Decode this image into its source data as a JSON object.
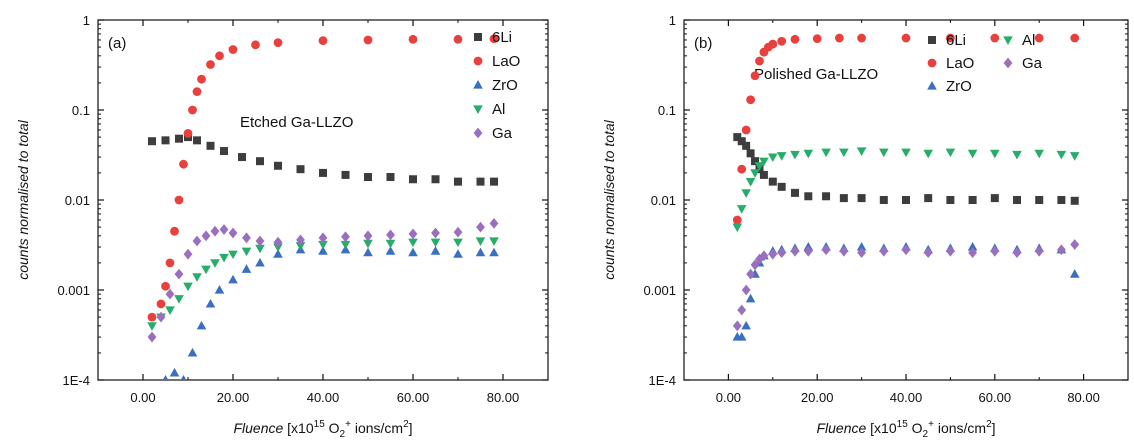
{
  "figure": {
    "colors": {
      "6Li": "#3d3d3d",
      "LaO": "#e8413d",
      "ZrO": "#3a6fc2",
      "Al": "#27ad6a",
      "Ga": "#9a6fc0"
    }
  },
  "chart_data": [
    {
      "type": "scatter",
      "panel_label": "(a)",
      "annotation": "Etched Ga-LLZO",
      "xlabel_italic": "Fluence",
      "xlabel_rest": " [x10",
      "xlabel_sup1": "15",
      "xlabel_mid": " O",
      "xlabel_sub": "2",
      "xlabel_sup2": "+",
      "xlabel_end": " ions/cm",
      "xlabel_sup3": "2",
      "xlabel_close": "]",
      "ylabel": "counts normalised to total",
      "xlim": [
        -10,
        90
      ],
      "ylim": [
        0.0001,
        1
      ],
      "yscale": "log",
      "x_ticks": [
        0,
        20,
        40,
        60,
        80
      ],
      "x_tick_labels": [
        "0.00",
        "20.00",
        "40.00",
        "60.00",
        "80.00"
      ],
      "y_ticks": [
        0.0001,
        0.001,
        0.01,
        0.1,
        1
      ],
      "y_tick_labels": [
        "1E-4",
        "0.001",
        "0.01",
        "0.1",
        "1"
      ],
      "legend": {
        "placement": "top-right",
        "columns": 1,
        "entries": [
          "6Li",
          "LaO",
          "ZrO",
          "Al",
          "Ga"
        ]
      },
      "series": [
        {
          "name": "6Li",
          "marker": "square",
          "x": [
            2,
            5,
            8,
            10,
            12,
            15,
            18,
            22,
            26,
            30,
            35,
            40,
            45,
            50,
            55,
            60,
            65,
            70,
            75,
            78
          ],
          "y": [
            0.045,
            0.046,
            0.048,
            0.05,
            0.046,
            0.04,
            0.035,
            0.03,
            0.027,
            0.024,
            0.022,
            0.02,
            0.019,
            0.018,
            0.018,
            0.017,
            0.017,
            0.016,
            0.016,
            0.016
          ]
        },
        {
          "name": "LaO",
          "marker": "circle",
          "x": [
            2,
            4,
            5,
            6,
            7,
            8,
            9,
            10,
            11,
            12,
            13,
            15,
            17,
            20,
            25,
            30,
            40,
            50,
            60,
            70,
            78
          ],
          "y": [
            0.0005,
            0.0007,
            0.0011,
            0.002,
            0.0045,
            0.01,
            0.025,
            0.055,
            0.1,
            0.16,
            0.22,
            0.32,
            0.4,
            0.47,
            0.53,
            0.56,
            0.59,
            0.6,
            0.61,
            0.61,
            0.62
          ]
        },
        {
          "name": "ZrO",
          "marker": "triangle-up",
          "x": [
            5,
            7,
            9,
            11,
            13,
            15,
            17,
            20,
            23,
            26,
            30,
            35,
            40,
            45,
            50,
            55,
            60,
            65,
            70,
            75,
            78
          ],
          "y": [
            0.0001,
            0.00012,
            0.0001,
            0.0002,
            0.0004,
            0.0007,
            0.001,
            0.0013,
            0.0017,
            0.002,
            0.0025,
            0.0028,
            0.0027,
            0.0028,
            0.0026,
            0.0027,
            0.0026,
            0.0027,
            0.0025,
            0.0026,
            0.0026
          ]
        },
        {
          "name": "Al",
          "marker": "triangle-down",
          "x": [
            2,
            4,
            6,
            8,
            10,
            12,
            14,
            16,
            18,
            20,
            23,
            26,
            30,
            35,
            40,
            45,
            50,
            55,
            60,
            65,
            70,
            75,
            78
          ],
          "y": [
            0.0004,
            0.0005,
            0.0006,
            0.0008,
            0.0011,
            0.0014,
            0.0017,
            0.002,
            0.0023,
            0.0025,
            0.0027,
            0.0029,
            0.003,
            0.0031,
            0.0032,
            0.0032,
            0.0033,
            0.0033,
            0.0034,
            0.0034,
            0.0034,
            0.0035,
            0.0035
          ]
        },
        {
          "name": "Ga",
          "marker": "diamond",
          "x": [
            2,
            4,
            6,
            8,
            10,
            12,
            14,
            16,
            18,
            20,
            23,
            26,
            30,
            35,
            40,
            45,
            50,
            55,
            60,
            65,
            70,
            75,
            78
          ],
          "y": [
            0.0003,
            0.0005,
            0.0009,
            0.0015,
            0.0025,
            0.0035,
            0.004,
            0.0045,
            0.0047,
            0.0043,
            0.0038,
            0.0035,
            0.0034,
            0.0036,
            0.0038,
            0.0039,
            0.004,
            0.0041,
            0.0042,
            0.0043,
            0.0044,
            0.005,
            0.0055
          ]
        }
      ]
    },
    {
      "type": "scatter",
      "panel_label": "(b)",
      "annotation": "Polished Ga-LLZO",
      "xlabel_italic": "Fluence",
      "xlabel_rest": " [x10",
      "xlabel_sup1": "15",
      "xlabel_mid": " O",
      "xlabel_sub": "2",
      "xlabel_sup2": "+",
      "xlabel_end": " ions/cm",
      "xlabel_sup3": "2",
      "xlabel_close": "]",
      "ylabel": "counts normalised to total",
      "xlim": [
        -10,
        90
      ],
      "ylim": [
        0.0001,
        1
      ],
      "yscale": "log",
      "x_ticks": [
        0,
        20,
        40,
        60,
        80
      ],
      "x_tick_labels": [
        "0.00",
        "20.00",
        "40.00",
        "60.00",
        "80.00"
      ],
      "y_ticks": [
        0.0001,
        0.001,
        0.01,
        0.1,
        1
      ],
      "y_tick_labels": [
        "1E-4",
        "0.001",
        "0.01",
        "0.1",
        "1"
      ],
      "legend": {
        "placement": "top-right",
        "columns": 2,
        "entries": [
          "6Li",
          "Al",
          "LaO",
          "Ga",
          "ZrO"
        ]
      },
      "series": [
        {
          "name": "6Li",
          "marker": "square",
          "x": [
            2,
            3,
            4,
            5,
            6,
            7,
            8,
            10,
            12,
            15,
            18,
            22,
            26,
            30,
            35,
            40,
            45,
            50,
            55,
            60,
            65,
            70,
            75,
            78
          ],
          "y": [
            0.05,
            0.045,
            0.04,
            0.033,
            0.027,
            0.022,
            0.019,
            0.016,
            0.014,
            0.012,
            0.011,
            0.011,
            0.0105,
            0.0105,
            0.01,
            0.01,
            0.0105,
            0.01,
            0.01,
            0.0105,
            0.01,
            0.01,
            0.01,
            0.0098
          ]
        },
        {
          "name": "LaO",
          "marker": "circle",
          "x": [
            2,
            3,
            4,
            5,
            6,
            7,
            8,
            9,
            10,
            12,
            15,
            20,
            25,
            30,
            40,
            50,
            60,
            70,
            78
          ],
          "y": [
            0.006,
            0.022,
            0.06,
            0.13,
            0.24,
            0.35,
            0.44,
            0.5,
            0.54,
            0.58,
            0.61,
            0.62,
            0.63,
            0.63,
            0.63,
            0.63,
            0.63,
            0.63,
            0.63
          ]
        },
        {
          "name": "ZrO",
          "marker": "triangle-up",
          "x": [
            2,
            3,
            4,
            5,
            6,
            7,
            8,
            10,
            12,
            15,
            18,
            22,
            26,
            30,
            35,
            40,
            45,
            50,
            55,
            60,
            65,
            70,
            75,
            78
          ],
          "y": [
            0.0003,
            0.0003,
            0.0004,
            0.0008,
            0.0015,
            0.002,
            0.0024,
            0.0027,
            0.0028,
            0.0029,
            0.003,
            0.003,
            0.0029,
            0.003,
            0.0029,
            0.003,
            0.0028,
            0.0029,
            0.003,
            0.0029,
            0.0028,
            0.0029,
            0.0028,
            0.0015
          ]
        },
        {
          "name": "Al",
          "marker": "triangle-down",
          "x": [
            2,
            3,
            4,
            5,
            6,
            7,
            8,
            10,
            12,
            15,
            18,
            22,
            26,
            30,
            35,
            40,
            45,
            50,
            55,
            60,
            65,
            70,
            75,
            78
          ],
          "y": [
            0.005,
            0.008,
            0.012,
            0.016,
            0.02,
            0.024,
            0.027,
            0.03,
            0.031,
            0.032,
            0.033,
            0.034,
            0.034,
            0.035,
            0.034,
            0.034,
            0.033,
            0.034,
            0.033,
            0.033,
            0.032,
            0.033,
            0.032,
            0.031
          ]
        },
        {
          "name": "Ga",
          "marker": "diamond",
          "x": [
            2,
            3,
            4,
            5,
            6,
            7,
            8,
            10,
            12,
            15,
            18,
            22,
            26,
            30,
            35,
            40,
            45,
            50,
            55,
            60,
            65,
            70,
            75,
            78
          ],
          "y": [
            0.0004,
            0.0006,
            0.001,
            0.0015,
            0.0019,
            0.0022,
            0.0024,
            0.0025,
            0.0026,
            0.0027,
            0.0027,
            0.0028,
            0.0027,
            0.0026,
            0.0027,
            0.0028,
            0.0026,
            0.0027,
            0.0026,
            0.0027,
            0.0026,
            0.0027,
            0.0028,
            0.0032
          ]
        }
      ]
    }
  ]
}
